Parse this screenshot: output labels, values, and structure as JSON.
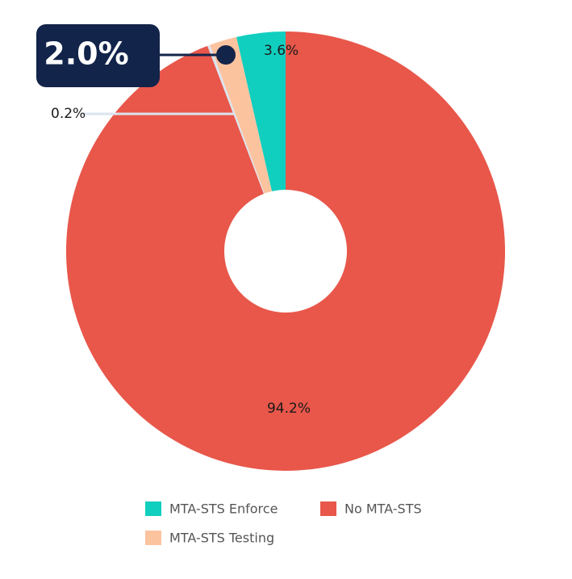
{
  "chart_data": {
    "type": "donut",
    "categories": [
      "MTA-STS Enforce",
      "MTA-STS Testing",
      null,
      "No MTA-STS"
    ],
    "values": [
      3.6,
      2.0,
      0.2,
      94.2
    ],
    "value_labels": [
      "3.6%",
      "2.0%",
      "0.2%",
      "94.2%"
    ],
    "colors": [
      "#11cfbf",
      "#fcc39f",
      "#dbe4ef",
      "#e8574a"
    ],
    "highlight": 1
  }
}
